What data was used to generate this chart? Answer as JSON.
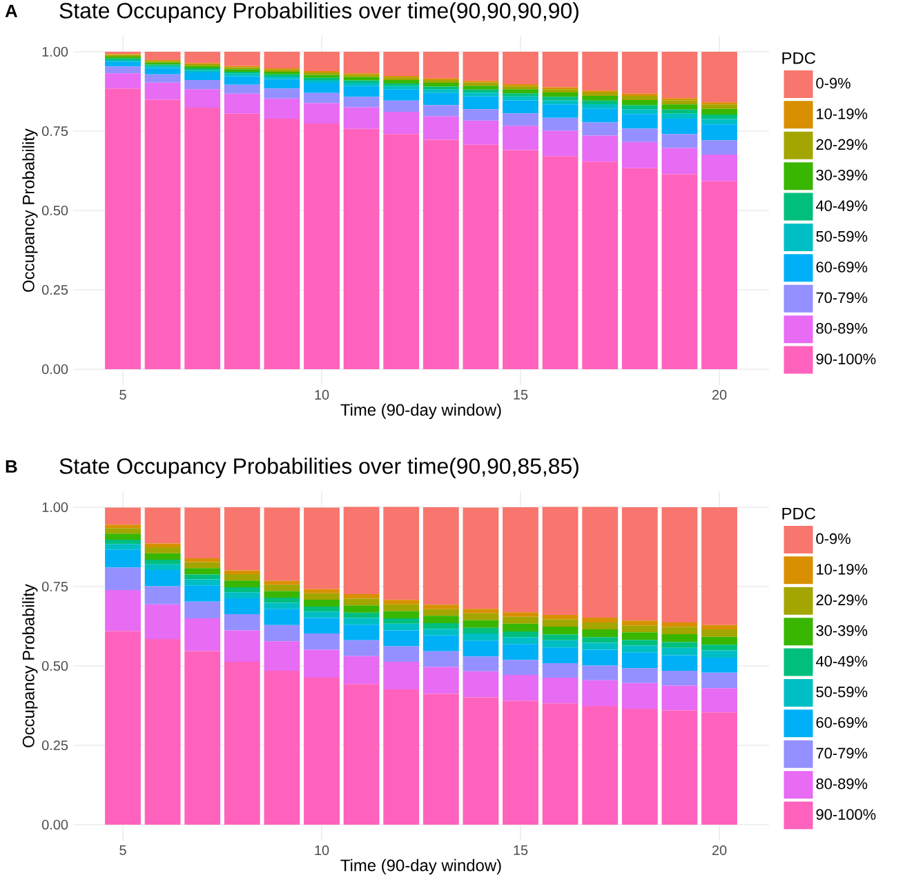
{
  "chart_data": [
    {
      "type": "bar",
      "stacked": true,
      "title": "State Occupancy Probabilities over time(90,90,90,90)",
      "xlabel": "Time (90-day window)",
      "ylabel": "Occupancy Probability",
      "legend_title": "PDC",
      "legend": "right",
      "grid": true,
      "annotations": [
        "A"
      ],
      "x": [
        5,
        6,
        7,
        8,
        9,
        10,
        11,
        12,
        13,
        14,
        15,
        16,
        17,
        18,
        19,
        20
      ],
      "xlim": [
        3.75,
        21.25
      ],
      "xticks": [
        5,
        10,
        15,
        20
      ],
      "ylim": [
        -0.05,
        1.05
      ],
      "yticks": [
        {
          "value": 0,
          "label": "0.00"
        },
        {
          "value": 0.25,
          "label": "0.25"
        },
        {
          "value": 0.5,
          "label": "0.50"
        },
        {
          "value": 0.75,
          "label": "0.75"
        },
        {
          "value": 1,
          "label": "1.00"
        }
      ],
      "series": [
        {
          "name": "90-100%",
          "color": "#FF62BC",
          "values": [
            0.884,
            0.849,
            0.824,
            0.805,
            0.789,
            0.774,
            0.757,
            0.741,
            0.723,
            0.707,
            0.69,
            0.671,
            0.654,
            0.633,
            0.614,
            0.592
          ]
        },
        {
          "name": "80-89%",
          "color": "#E76BF3",
          "values": [
            0.048,
            0.054,
            0.058,
            0.063,
            0.064,
            0.064,
            0.068,
            0.07,
            0.074,
            0.076,
            0.077,
            0.08,
            0.082,
            0.083,
            0.083,
            0.084
          ]
        },
        {
          "name": "70-79%",
          "color": "#9590FF",
          "values": [
            0.022,
            0.026,
            0.029,
            0.028,
            0.031,
            0.032,
            0.033,
            0.035,
            0.035,
            0.036,
            0.039,
            0.041,
            0.041,
            0.042,
            0.044,
            0.045
          ]
        },
        {
          "name": "60-69%",
          "color": "#00B0F6",
          "values": [
            0.014,
            0.02,
            0.024,
            0.027,
            0.03,
            0.032,
            0.034,
            0.036,
            0.038,
            0.04,
            0.041,
            0.042,
            0.044,
            0.046,
            0.048,
            0.05
          ]
        },
        {
          "name": "50-59%",
          "color": "#00BFC4",
          "values": [
            0.006,
            0.006,
            0.007,
            0.008,
            0.008,
            0.009,
            0.01,
            0.01,
            0.011,
            0.012,
            0.012,
            0.013,
            0.014,
            0.015,
            0.016,
            0.017
          ]
        },
        {
          "name": "40-49%",
          "color": "#00BF7D",
          "values": [
            0.005,
            0.005,
            0.006,
            0.006,
            0.007,
            0.007,
            0.008,
            0.008,
            0.009,
            0.01,
            0.01,
            0.011,
            0.011,
            0.013,
            0.013,
            0.014
          ]
        },
        {
          "name": "30-39%",
          "color": "#39B600",
          "values": [
            0.006,
            0.006,
            0.007,
            0.008,
            0.008,
            0.009,
            0.01,
            0.011,
            0.012,
            0.012,
            0.013,
            0.014,
            0.015,
            0.016,
            0.016,
            0.018
          ]
        },
        {
          "name": "20-29%",
          "color": "#A3A500",
          "values": [
            0.005,
            0.005,
            0.006,
            0.006,
            0.007,
            0.008,
            0.008,
            0.008,
            0.009,
            0.01,
            0.01,
            0.01,
            0.011,
            0.013,
            0.013,
            0.014
          ]
        },
        {
          "name": "10-19%",
          "color": "#D89000",
          "values": [
            0.003,
            0.003,
            0.003,
            0.004,
            0.004,
            0.004,
            0.004,
            0.005,
            0.005,
            0.005,
            0.006,
            0.006,
            0.006,
            0.007,
            0.007,
            0.007
          ]
        },
        {
          "name": "0-9%",
          "color": "#F8766D",
          "values": [
            0.007,
            0.026,
            0.036,
            0.045,
            0.052,
            0.061,
            0.068,
            0.076,
            0.084,
            0.092,
            0.102,
            0.112,
            0.122,
            0.132,
            0.146,
            0.159
          ]
        }
      ]
    },
    {
      "type": "bar",
      "stacked": true,
      "title": "State Occupancy Probabilities over time(90,90,85,85)",
      "xlabel": "Time (90-day window)",
      "ylabel": "Occupancy Probability",
      "legend_title": "PDC",
      "legend": "right",
      "grid": true,
      "annotations": [
        "B"
      ],
      "x": [
        5,
        6,
        7,
        8,
        9,
        10,
        11,
        12,
        13,
        14,
        15,
        16,
        17,
        18,
        19,
        20
      ],
      "xlim": [
        3.75,
        21.25
      ],
      "xticks": [
        5,
        10,
        15,
        20
      ],
      "ylim": [
        -0.05,
        1.05
      ],
      "yticks": [
        {
          "value": 0,
          "label": "0.00"
        },
        {
          "value": 0.25,
          "label": "0.25"
        },
        {
          "value": 0.5,
          "label": "0.50"
        },
        {
          "value": 0.75,
          "label": "0.75"
        },
        {
          "value": 1,
          "label": "1.00"
        }
      ],
      "series": [
        {
          "name": "90-100%",
          "color": "#FF62BC",
          "values": [
            0.61,
            0.585,
            0.547,
            0.513,
            0.485,
            0.463,
            0.443,
            0.426,
            0.412,
            0.401,
            0.39,
            0.382,
            0.374,
            0.365,
            0.36,
            0.354
          ]
        },
        {
          "name": "80-89%",
          "color": "#E76BF3",
          "values": [
            0.129,
            0.109,
            0.103,
            0.099,
            0.093,
            0.088,
            0.088,
            0.087,
            0.085,
            0.082,
            0.082,
            0.081,
            0.081,
            0.081,
            0.078,
            0.076
          ]
        },
        {
          "name": "70-79%",
          "color": "#9590FF",
          "values": [
            0.071,
            0.057,
            0.053,
            0.051,
            0.051,
            0.051,
            0.05,
            0.049,
            0.049,
            0.047,
            0.047,
            0.046,
            0.046,
            0.047,
            0.047,
            0.049
          ]
        },
        {
          "name": "60-69%",
          "color": "#00B0F6",
          "values": [
            0.057,
            0.051,
            0.051,
            0.05,
            0.051,
            0.049,
            0.049,
            0.05,
            0.05,
            0.05,
            0.05,
            0.049,
            0.05,
            0.049,
            0.049,
            0.047
          ]
        },
        {
          "name": "50-59%",
          "color": "#00BFC4",
          "values": [
            0.017,
            0.018,
            0.019,
            0.019,
            0.019,
            0.02,
            0.021,
            0.021,
            0.021,
            0.022,
            0.022,
            0.023,
            0.022,
            0.022,
            0.023,
            0.023
          ]
        },
        {
          "name": "40-49%",
          "color": "#00BF7D",
          "values": [
            0.014,
            0.015,
            0.015,
            0.016,
            0.016,
            0.016,
            0.017,
            0.017,
            0.018,
            0.018,
            0.018,
            0.018,
            0.018,
            0.018,
            0.018,
            0.018
          ]
        },
        {
          "name": "30-39%",
          "color": "#39B600",
          "values": [
            0.019,
            0.02,
            0.02,
            0.021,
            0.021,
            0.022,
            0.023,
            0.023,
            0.023,
            0.024,
            0.024,
            0.025,
            0.024,
            0.024,
            0.025,
            0.025
          ]
        },
        {
          "name": "20-29%",
          "color": "#A3A500",
          "values": [
            0.017,
            0.019,
            0.019,
            0.02,
            0.02,
            0.02,
            0.021,
            0.021,
            0.021,
            0.022,
            0.022,
            0.023,
            0.022,
            0.022,
            0.023,
            0.023
          ]
        },
        {
          "name": "10-19%",
          "color": "#D89000",
          "values": [
            0.011,
            0.012,
            0.012,
            0.012,
            0.012,
            0.013,
            0.014,
            0.014,
            0.014,
            0.014,
            0.014,
            0.014,
            0.015,
            0.015,
            0.014,
            0.014
          ]
        },
        {
          "name": "0-9%",
          "color": "#F8766D",
          "values": [
            0.054,
            0.113,
            0.16,
            0.199,
            0.231,
            0.257,
            0.275,
            0.293,
            0.307,
            0.319,
            0.331,
            0.34,
            0.349,
            0.357,
            0.363,
            0.371
          ]
        }
      ]
    }
  ]
}
